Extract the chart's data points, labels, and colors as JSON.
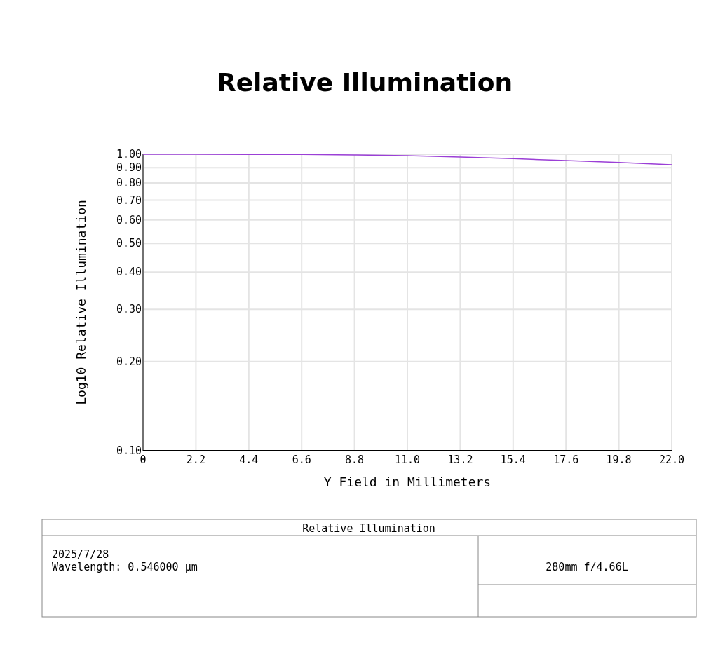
{
  "chart_data": {
    "type": "line",
    "title": "Relative Illumination",
    "xlabel": "Y Field in Millimeters",
    "ylabel": "Log10 Relative Illumination",
    "x": [
      0,
      2.2,
      4.4,
      6.6,
      8.8,
      11,
      13.2,
      15.4,
      17.6,
      19.8,
      22
    ],
    "series": [
      {
        "color": "#9b3fd6",
        "values": [
          1.0,
          1.0,
          0.999,
          0.998,
          0.995,
          0.989,
          0.979,
          0.966,
          0.952,
          0.938,
          0.922
        ]
      }
    ],
    "xlim": [
      0,
      22
    ],
    "ylim": [
      0.1,
      1.0
    ],
    "log": "y",
    "xticks": [
      0,
      2.2,
      4.4,
      6.6,
      8.8,
      {
        "value": 11,
        "label": "11.0"
      },
      13.2,
      15.4,
      17.6,
      19.8,
      {
        "value": 22,
        "label": "22.0"
      }
    ],
    "yticks": [
      {
        "value": 0.1,
        "label": "0.10"
      },
      {
        "value": 0.2,
        "label": "0.20"
      },
      {
        "value": 0.3,
        "label": "0.30"
      },
      {
        "value": 0.4,
        "label": "0.40"
      },
      {
        "value": 0.5,
        "label": "0.50"
      },
      {
        "value": 0.6,
        "label": "0.60"
      },
      {
        "value": 0.7,
        "label": "0.70"
      },
      {
        "value": 0.8,
        "label": "0.80"
      },
      {
        "value": 0.9,
        "label": "0.90"
      },
      {
        "value": 1.0,
        "label": "1.00"
      }
    ],
    "grid": true,
    "annotations": [
      "Relative Illumination",
      "2025/7/28",
      "Wavelength: 0.546000 µm",
      "280mm f/4.66L"
    ]
  }
}
